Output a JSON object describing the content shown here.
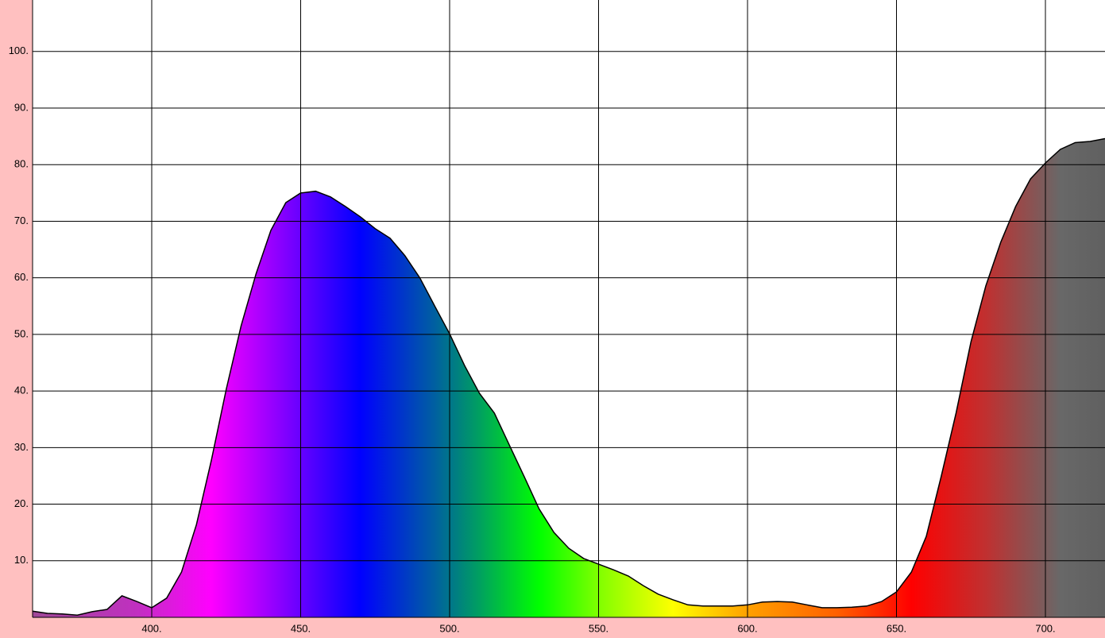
{
  "chart_data": {
    "type": "area",
    "x": [
      360,
      365,
      370,
      375,
      380,
      385,
      390,
      395,
      400,
      405,
      410,
      415,
      420,
      425,
      430,
      435,
      440,
      445,
      450,
      455,
      460,
      465,
      470,
      475,
      480,
      485,
      490,
      495,
      500,
      505,
      510,
      515,
      520,
      525,
      530,
      535,
      540,
      545,
      550,
      555,
      560,
      565,
      570,
      575,
      580,
      585,
      590,
      595,
      600,
      605,
      610,
      615,
      620,
      625,
      630,
      635,
      640,
      645,
      650,
      655,
      660,
      665,
      670,
      675,
      680,
      685,
      690,
      695,
      700,
      705,
      710,
      715,
      720
    ],
    "values": [
      1.1,
      0.7,
      0.6,
      0.4,
      1.0,
      1.4,
      3.8,
      2.8,
      1.7,
      3.4,
      8.0,
      16.4,
      27.7,
      40.3,
      51.5,
      60.7,
      68.4,
      73.3,
      75.0,
      75.3,
      74.3,
      72.6,
      70.8,
      68.7,
      67.0,
      63.9,
      60.0,
      55.0,
      50.1,
      44.5,
      39.6,
      36.1,
      30.5,
      24.9,
      19.2,
      15.0,
      12.2,
      10.4,
      9.4,
      8.4,
      7.3,
      5.6,
      4.1,
      3.1,
      2.2,
      2.0,
      2.0,
      2.0,
      2.2,
      2.7,
      2.8,
      2.7,
      2.2,
      1.7,
      1.7,
      1.8,
      2.0,
      2.8,
      4.5,
      8.0,
      14.3,
      24.9,
      36.1,
      48.7,
      58.6,
      66.3,
      72.6,
      77.5,
      80.3,
      82.7,
      83.9,
      84.1,
      84.6
    ],
    "line_color": "#000000",
    "fill_stops": [
      {
        "x": 360,
        "color": "#a04898"
      },
      {
        "x": 395,
        "color": "#c030c0"
      },
      {
        "x": 420,
        "color": "#ff00ff"
      },
      {
        "x": 445,
        "color": "#8000ff"
      },
      {
        "x": 470,
        "color": "#0000ff"
      },
      {
        "x": 495,
        "color": "#0060a0"
      },
      {
        "x": 510,
        "color": "#00a060"
      },
      {
        "x": 530,
        "color": "#00ff00"
      },
      {
        "x": 550,
        "color": "#80ff00"
      },
      {
        "x": 575,
        "color": "#ffff00"
      },
      {
        "x": 600,
        "color": "#ffa000"
      },
      {
        "x": 630,
        "color": "#ff6000"
      },
      {
        "x": 655,
        "color": "#ff0000"
      },
      {
        "x": 680,
        "color": "#c03030"
      },
      {
        "x": 705,
        "color": "#686868"
      },
      {
        "x": 720,
        "color": "#606060"
      }
    ],
    "xlim": [
      360,
      720
    ],
    "ylim": [
      0,
      109.1
    ],
    "xticks": [
      {
        "value": 400,
        "label": "400."
      },
      {
        "value": 450,
        "label": "450."
      },
      {
        "value": 500,
        "label": "500."
      },
      {
        "value": 550,
        "label": "550."
      },
      {
        "value": 600,
        "label": "600."
      },
      {
        "value": 650,
        "label": "650."
      },
      {
        "value": 700,
        "label": "700."
      }
    ],
    "yticks": [
      {
        "value": 10,
        "label": "10."
      },
      {
        "value": 20,
        "label": "20."
      },
      {
        "value": 30,
        "label": "30."
      },
      {
        "value": 40,
        "label": "40."
      },
      {
        "value": 50,
        "label": "50."
      },
      {
        "value": 60,
        "label": "60."
      },
      {
        "value": 70,
        "label": "70."
      },
      {
        "value": 80,
        "label": "80."
      },
      {
        "value": 90,
        "label": "90."
      },
      {
        "value": 100,
        "label": "100."
      }
    ],
    "grid": true
  }
}
